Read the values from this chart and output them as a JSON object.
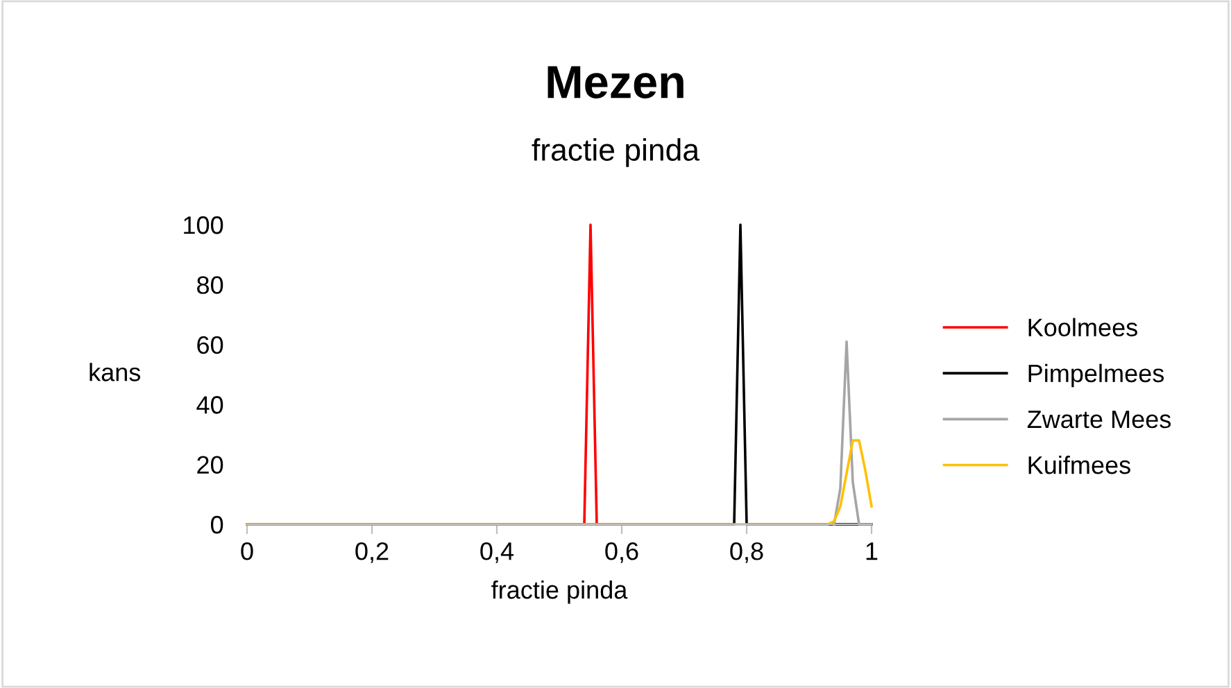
{
  "chart_data": {
    "type": "line",
    "title": "Mezen",
    "subtitle": "fractie pinda",
    "xlabel": "fractie pinda",
    "ylabel": "kans",
    "xlim": [
      0,
      1
    ],
    "xticks": [
      {
        "value": 0,
        "label": "0"
      },
      {
        "value": 0.2,
        "label": "0,2"
      },
      {
        "value": 0.4,
        "label": "0,4"
      },
      {
        "value": 0.6,
        "label": "0,6"
      },
      {
        "value": 0.8,
        "label": "0,8"
      },
      {
        "value": 1,
        "label": "1"
      }
    ],
    "ylim": [
      0,
      100
    ],
    "yticks": [
      0,
      20,
      40,
      60,
      80,
      100
    ],
    "grid": false,
    "legend": "right",
    "marker": "none",
    "line_style": "solid",
    "series": [
      {
        "name": "Koolmees",
        "color": "#ff0000",
        "x": [
          0.54,
          0.55,
          0.56
        ],
        "values": [
          0,
          100,
          0
        ]
      },
      {
        "name": "Pimpelmees",
        "color": "#000000",
        "x": [
          0,
          0.78,
          0.79,
          0.8,
          1
        ],
        "values": [
          0,
          0,
          100,
          0,
          0
        ]
      },
      {
        "name": "Zwarte Mees",
        "color": "#a5a5a5",
        "x": [
          0.94,
          0.95,
          0.96,
          0.97,
          0.98,
          1
        ],
        "values": [
          0,
          12,
          61,
          14,
          0,
          0
        ]
      },
      {
        "name": "Kuifmees",
        "color": "#ffc000",
        "x": [
          0,
          0.93,
          0.94,
          0.95,
          0.96,
          0.97,
          0.98,
          0.99,
          1
        ],
        "values": [
          0,
          0,
          1,
          6,
          17,
          28,
          28,
          18,
          6
        ]
      }
    ]
  }
}
